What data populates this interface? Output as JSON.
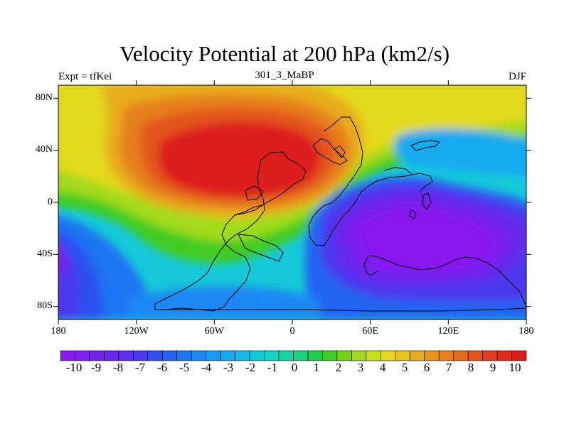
{
  "title": "Velocity Potential at 200 hPa (km2/s)",
  "left_string": "Expt = tfKei",
  "center_string": "301_3_MaBP",
  "right_string": "DJF",
  "map": {
    "projection": "cylindrical equidistant",
    "lon_range": [
      -180,
      180
    ],
    "lat_range": [
      -90,
      90
    ],
    "lon_ticks": [
      {
        "value": -180,
        "label": "180"
      },
      {
        "value": -120,
        "label": "120W"
      },
      {
        "value": -60,
        "label": "60W"
      },
      {
        "value": 0,
        "label": "0"
      },
      {
        "value": 60,
        "label": "60E"
      },
      {
        "value": 120,
        "label": "120E"
      },
      {
        "value": 180,
        "label": "180"
      }
    ],
    "lat_ticks": [
      {
        "value": 80,
        "label": "80N"
      },
      {
        "value": 40,
        "label": "40N"
      },
      {
        "value": 0,
        "label": "0"
      },
      {
        "value": -40,
        "label": "40S"
      },
      {
        "value": -80,
        "label": "80S"
      }
    ],
    "field_features": [
      {
        "type": "max",
        "lon": -45,
        "lat": 22,
        "value": 10
      },
      {
        "type": "min",
        "lon": 100,
        "lat": -25,
        "value": -10
      },
      {
        "type": "min",
        "lon": -178,
        "lat": -35,
        "value": -9
      }
    ]
  },
  "colorbar": {
    "labels": [
      "-10",
      "-9",
      "-8",
      "-7",
      "-6",
      "-5",
      "-4",
      "-3",
      "-2",
      "-1",
      "0",
      "1",
      "2",
      "3",
      "4",
      "5",
      "6",
      "7",
      "8",
      "9",
      "10"
    ],
    "colors": [
      "#8a19f0",
      "#7f1ff0",
      "#7322ee",
      "#6828ed",
      "#5e2eee",
      "#4b38ee",
      "#2b50ef",
      "#2463f1",
      "#1f75f2",
      "#1b88f3",
      "#179af4",
      "#14aaf1",
      "#12bbe9",
      "#11cad9",
      "#13d2c3",
      "#16d4a4",
      "#1ad27e",
      "#22ce52",
      "#3fcc24",
      "#74d318",
      "#a2da1a",
      "#c8de1c",
      "#e3d91f",
      "#e8c21d",
      "#e8ac1c",
      "#e8951c",
      "#e67f1d",
      "#e46a1c",
      "#e3541c",
      "#e23e1d",
      "#e02a1e",
      "#dd1c1d"
    ]
  }
}
